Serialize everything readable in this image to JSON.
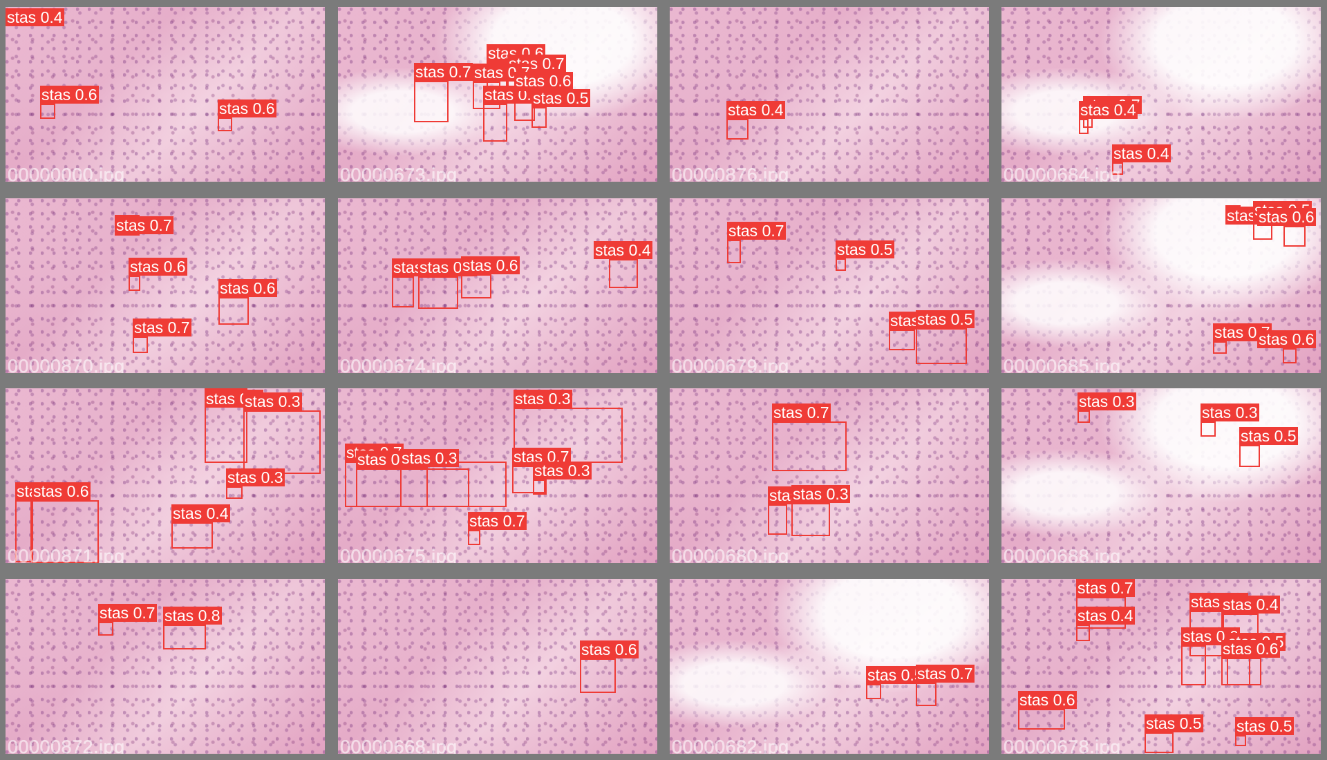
{
  "colors": {
    "box": "#ef3b36",
    "label_text": "#ffffff",
    "background": "#7b7b7b"
  },
  "tiles": [
    {
      "filename": "00000000.jpg",
      "detections": [
        {
          "label": "stas 0.4"
        },
        {
          "label": "stas 0.6"
        },
        {
          "label": "stas 0.6"
        }
      ]
    },
    {
      "filename": "00000673.jpg",
      "detections": [
        {
          "label": "stas 0.7"
        },
        {
          "label": "stas 0.6"
        },
        {
          "label": "stas 0.7"
        },
        {
          "label": "stas 0.7"
        },
        {
          "label": "stas 0.7"
        },
        {
          "label": "stas 0.6"
        },
        {
          "label": "stas 0.5"
        }
      ]
    },
    {
      "filename": "00000876.jpg",
      "detections": [
        {
          "label": "stas 0.4"
        }
      ]
    },
    {
      "filename": "00000684.jpg",
      "detections": [
        {
          "label": "stas 0.7"
        },
        {
          "label": "stas 0.4"
        },
        {
          "label": "stas 0.4"
        }
      ]
    },
    {
      "filename": "00000870.jpg",
      "detections": [
        {
          "label": "stas 0.7"
        },
        {
          "label": "stas 0.6"
        },
        {
          "label": "stas 0.6"
        },
        {
          "label": "stas 0.7"
        }
      ]
    },
    {
      "filename": "00000674.jpg",
      "detections": [
        {
          "label": "stas 0.4"
        },
        {
          "label": "stas 0.7"
        },
        {
          "label": "stas 0.6"
        },
        {
          "label": "stas 0.4"
        }
      ]
    },
    {
      "filename": "00000679.jpg",
      "detections": [
        {
          "label": "stas 0.7"
        },
        {
          "label": "stas 0.5"
        },
        {
          "label": "stas 0.4"
        },
        {
          "label": "stas 0.5"
        }
      ]
    },
    {
      "filename": "00000685.jpg",
      "detections": [
        {
          "label": "stas 0.6"
        },
        {
          "label": "stas 0.5"
        },
        {
          "label": "stas 0.6"
        },
        {
          "label": "stas 0.7"
        },
        {
          "label": "stas 0.6"
        }
      ]
    },
    {
      "filename": "00000871.jpg",
      "detections": [
        {
          "label": "stas 0.3"
        },
        {
          "label": "stas 0.3"
        },
        {
          "label": "stas 0.3"
        },
        {
          "label": "stas 0.4"
        },
        {
          "label": "stas 0.6"
        },
        {
          "label": "stas 0.4"
        }
      ]
    },
    {
      "filename": "00000675.jpg",
      "detections": [
        {
          "label": "stas 0.3"
        },
        {
          "label": "stas 0.7"
        },
        {
          "label": "stas 0.3"
        },
        {
          "label": "stas 0.3"
        },
        {
          "label": "stas 0.7"
        },
        {
          "label": "stas 0.3"
        },
        {
          "label": "stas 0.7"
        }
      ]
    },
    {
      "filename": "00000680.jpg",
      "detections": [
        {
          "label": "stas 0.7"
        },
        {
          "label": "stas 0.7"
        },
        {
          "label": "stas 0.3"
        }
      ]
    },
    {
      "filename": "00000688.jpg",
      "detections": [
        {
          "label": "stas 0.3"
        },
        {
          "label": "stas 0.3"
        },
        {
          "label": "stas 0.5"
        }
      ]
    },
    {
      "filename": "00000872.jpg",
      "detections": [
        {
          "label": "stas 0.7"
        },
        {
          "label": "stas 0.8"
        }
      ]
    },
    {
      "filename": "00000668.jpg",
      "detections": [
        {
          "label": "stas 0.6"
        }
      ]
    },
    {
      "filename": "00000682.jpg",
      "detections": [
        {
          "label": "stas 0.5"
        },
        {
          "label": "stas 0.7"
        }
      ]
    },
    {
      "filename": "00000678.jpg",
      "detections": [
        {
          "label": "stas 0.7"
        },
        {
          "label": "stas 0.4"
        },
        {
          "label": "stas 0.7"
        },
        {
          "label": "stas 0.4"
        },
        {
          "label": "stas 0.6"
        },
        {
          "label": "stas 0.6"
        },
        {
          "label": "stas 0.5"
        },
        {
          "label": "stas 0.6"
        },
        {
          "label": "stas 0.5"
        },
        {
          "label": "stas 0.5"
        }
      ]
    }
  ]
}
